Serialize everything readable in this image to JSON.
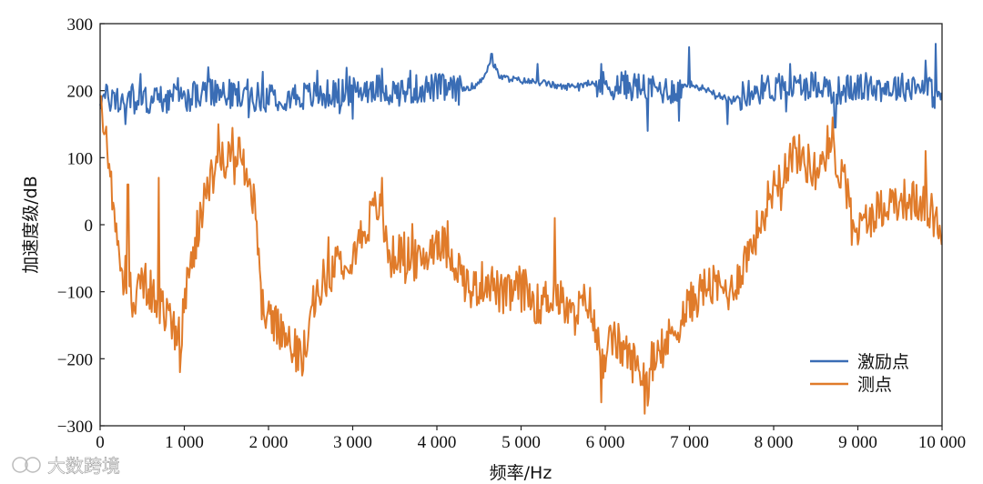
{
  "chart_data": {
    "type": "line",
    "xlabel": "频率/Hz",
    "ylabel": "加速度级/dB",
    "xlim": [
      0,
      10000
    ],
    "ylim": [
      -300,
      300
    ],
    "x_ticks": [
      0,
      1000,
      2000,
      3000,
      4000,
      5000,
      6000,
      7000,
      8000,
      9000,
      10000
    ],
    "x_tick_labels": [
      "0",
      "1 000",
      "2 000",
      "3 000",
      "4 000",
      "5 000",
      "6 000",
      "7 000",
      "8 000",
      "9 000",
      "10 000"
    ],
    "y_ticks": [
      300,
      200,
      100,
      0,
      -100,
      -200,
      -300
    ],
    "y_tick_labels": [
      "300",
      "200",
      "100",
      "0",
      "−100",
      "−200",
      "−300"
    ],
    "grid": false,
    "legend_position": "bottom-right",
    "series": [
      {
        "name": "激励点",
        "color": "#3a6db5",
        "x": [
          0,
          250,
          500,
          750,
          1000,
          1250,
          1500,
          1750,
          2000,
          2250,
          2500,
          2750,
          3000,
          3250,
          3500,
          3750,
          4000,
          4250,
          4500,
          4650,
          4750,
          5000,
          5250,
          5500,
          5750,
          6000,
          6250,
          6500,
          6750,
          7000,
          7250,
          7500,
          7750,
          8000,
          8250,
          8500,
          8750,
          9000,
          9250,
          9500,
          9750,
          10000
        ],
        "y": [
          190,
          185,
          185,
          188,
          190,
          195,
          195,
          192,
          190,
          193,
          192,
          195,
          200,
          205,
          198,
          202,
          205,
          200,
          210,
          245,
          220,
          215,
          212,
          205,
          210,
          208,
          208,
          205,
          200,
          210,
          200,
          185,
          200,
          205,
          205,
          210,
          200,
          205,
          205,
          205,
          210,
          185
        ],
        "spikes": [
          [
            300,
            150
          ],
          [
            480,
            225
          ],
          [
            1280,
            235
          ],
          [
            1760,
            160
          ],
          [
            2580,
            230
          ],
          [
            3000,
            158
          ],
          [
            3680,
            230
          ],
          [
            4650,
            255
          ],
          [
            5200,
            240
          ],
          [
            5950,
            240
          ],
          [
            6500,
            140
          ],
          [
            6880,
            155
          ],
          [
            7000,
            265
          ],
          [
            7450,
            150
          ],
          [
            8200,
            240
          ],
          [
            8730,
            145
          ],
          [
            9800,
            245
          ],
          [
            9920,
            270
          ]
        ]
      },
      {
        "name": "测点",
        "color": "#e07b2a",
        "x": [
          0,
          100,
          250,
          400,
          500,
          600,
          800,
          950,
          1100,
          1250,
          1450,
          1650,
          1850,
          1900,
          2000,
          2200,
          2400,
          2600,
          2800,
          3000,
          3300,
          3450,
          3600,
          3800,
          4000,
          4200,
          4400,
          4600,
          4800,
          5000,
          5200,
          5400,
          5600,
          5800,
          5950,
          6100,
          6300,
          6500,
          6800,
          7000,
          7200,
          7500,
          7800,
          8000,
          8250,
          8500,
          8650,
          8800,
          9000,
          9200,
          9500,
          9800,
          10000
        ],
        "y": [
          185,
          90,
          -50,
          -120,
          -80,
          -100,
          -140,
          -170,
          -50,
          50,
          100,
          80,
          40,
          -110,
          -140,
          -170,
          -200,
          -90,
          -60,
          -40,
          30,
          -50,
          -40,
          -60,
          -20,
          -50,
          -100,
          -80,
          -110,
          -90,
          -120,
          -100,
          -140,
          -110,
          -200,
          -170,
          -200,
          -230,
          -160,
          -120,
          -90,
          -100,
          -10,
          60,
          110,
          80,
          120,
          80,
          -10,
          20,
          40,
          30,
          -10
        ],
        "spikes": [
          [
            0,
            190
          ],
          [
            330,
            60
          ],
          [
            700,
            70
          ],
          [
            950,
            -220
          ],
          [
            1400,
            150
          ],
          [
            1650,
            130
          ],
          [
            2400,
            -225
          ],
          [
            3350,
            70
          ],
          [
            5000,
            -130
          ],
          [
            5400,
            10
          ],
          [
            5950,
            -265
          ],
          [
            6500,
            -270
          ],
          [
            6550,
            -175
          ],
          [
            8700,
            160
          ],
          [
            9800,
            110
          ],
          [
            10000,
            -30
          ]
        ]
      }
    ]
  },
  "watermark": "大数跨境"
}
